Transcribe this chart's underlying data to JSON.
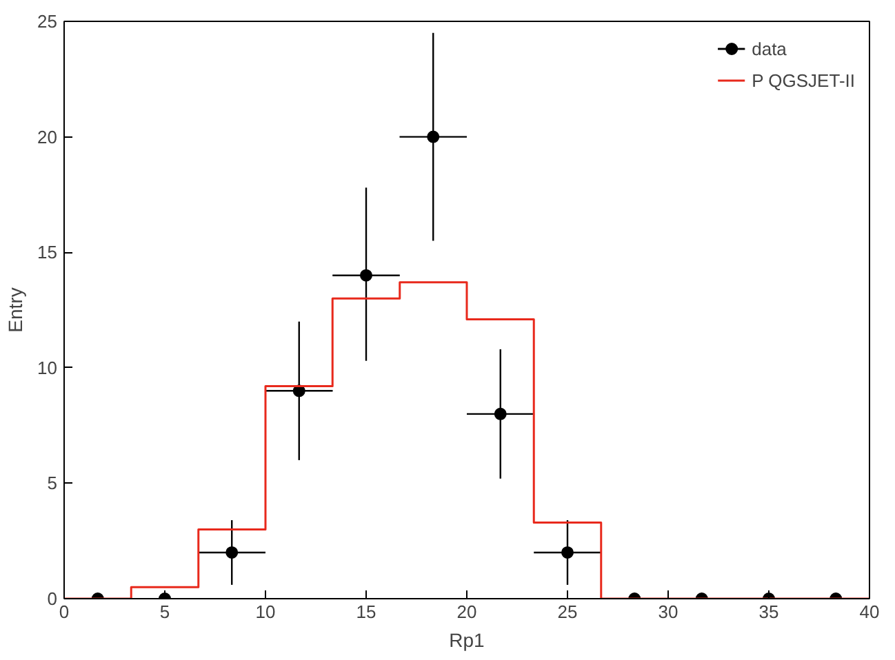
{
  "chart_data": {
    "type": "scatter",
    "xlabel": "Rp1",
    "ylabel": "Entry",
    "xlim": [
      0,
      40
    ],
    "ylim": [
      0,
      25
    ],
    "xticks": [
      0,
      5,
      10,
      15,
      20,
      25,
      30,
      35,
      40
    ],
    "yticks": [
      0,
      5,
      10,
      15,
      20,
      25
    ],
    "grid": false,
    "legend": "top right",
    "series": [
      {
        "name": "data",
        "color": "#000000",
        "marker": "circle",
        "x": [
          1.67,
          5,
          8.33,
          11.67,
          15,
          18.33,
          21.67,
          25,
          28.33,
          31.67,
          35,
          38.33
        ],
        "values": [
          0,
          0,
          2,
          9,
          14,
          20,
          8,
          2,
          0,
          0,
          0,
          0
        ],
        "errors": [
          null,
          null,
          [
            0.6,
            3.4
          ],
          [
            6,
            12
          ],
          [
            10.3,
            17.8
          ],
          [
            15.5,
            24.5
          ],
          [
            5.2,
            10.8
          ],
          [
            0.6,
            3.4
          ],
          null,
          null,
          null,
          null
        ],
        "xerrors": [
          null,
          null,
          1.67,
          1.67,
          1.67,
          1.67,
          1.67,
          1.67,
          null,
          null,
          null,
          null
        ]
      },
      {
        "name": "P QGSJET-II",
        "type": "step",
        "color": "#e8291c",
        "x": [
          0,
          3.33,
          6.67,
          10,
          13.33,
          16.67,
          20,
          23.33,
          26.67,
          30,
          33.33,
          36.67,
          40
        ],
        "values": [
          0,
          0.5,
          3.0,
          9.2,
          13.0,
          13.7,
          12.1,
          3.3,
          0,
          0,
          0,
          0,
          0
        ]
      }
    ]
  }
}
